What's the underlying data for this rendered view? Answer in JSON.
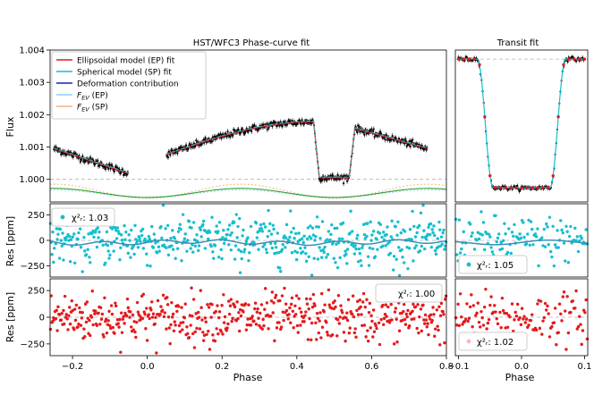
{
  "figure_title_left": "HST/WFC3 Phase-curve fit",
  "figure_title_right": "Transit fit",
  "colors": {
    "ep_model": "#e41a1c",
    "sp_model": "#17becf",
    "deformation": "#1f1fbf",
    "fev_ep": "#87cefa",
    "fev_sp": "#f4b183",
    "green_curve": "#2ca02c",
    "data": "#000000",
    "res_sp": "#17becf",
    "res_ep": "#e41a1c",
    "guide": "#b0b0b0"
  },
  "chart_data": [
    {
      "id": "phase_flux",
      "type": "line",
      "title": "HST/WFC3 Phase-curve fit",
      "ylabel": "Flux",
      "xlim": [
        -0.26,
        0.8
      ],
      "ylim": [
        0.9993,
        1.004
      ],
      "yticks": [
        "1.000",
        "1.001",
        "1.002",
        "1.003",
        "1.004"
      ],
      "ytick_values": [
        1.0,
        1.001,
        1.002,
        1.003,
        1.004
      ],
      "reference_line": 1.0,
      "legend": [
        "Ellipsoidal model (EP) fit",
        "Spherical model (SP) fit",
        "Deformation contribution",
        "F_EV (EP)",
        "F_EV (SP)"
      ],
      "segments": [
        {
          "name": "pre-transit",
          "x": [
            -0.25,
            -0.2,
            -0.15,
            -0.1,
            -0.06
          ],
          "y": [
            1.00095,
            1.00075,
            1.00055,
            1.00035,
            1.00022
          ]
        },
        {
          "name": "post-transit",
          "x": [
            0.06,
            0.1,
            0.2,
            0.3,
            0.4,
            0.44
          ],
          "y": [
            1.0008,
            1.00105,
            1.00135,
            1.0016,
            1.00175,
            1.00178
          ]
        },
        {
          "name": "eclipse",
          "x": [
            0.46,
            0.5,
            0.54
          ],
          "y": [
            1.00005,
            1.0,
            1.00005
          ]
        },
        {
          "name": "post-eclipse",
          "x": [
            0.56,
            0.6,
            0.7,
            0.75
          ],
          "y": [
            1.00158,
            1.00148,
            1.00115,
            1.00095
          ]
        }
      ],
      "transit_window": [
        -0.05,
        0.05
      ],
      "eclipse_window": [
        0.45,
        0.55
      ]
    },
    {
      "id": "transit_flux",
      "type": "line",
      "title": "Transit fit",
      "xlim": [
        -0.105,
        0.105
      ],
      "ylim": [
        0.9993,
        1.004
      ],
      "reference_line": 1.00372,
      "out_of_transit_level": 1.00372,
      "in_transit_depth": 0.99973,
      "ingress": [
        -0.07,
        -0.045
      ],
      "egress": [
        0.045,
        0.07
      ]
    },
    {
      "id": "res_sp_phase",
      "type": "scatter",
      "ylabel": "Res [ppm]",
      "xlim": [
        -0.26,
        0.8
      ],
      "ylim": [
        -360,
        360
      ],
      "yticks": [
        "−250",
        "0",
        "250"
      ],
      "ytick_values": [
        -250,
        0,
        250
      ],
      "annotation": "χ²ᵣ: 1.03",
      "scatter_sd": 120,
      "model_trend": "wiggle"
    },
    {
      "id": "res_sp_transit",
      "type": "scatter",
      "xlim": [
        -0.105,
        0.105
      ],
      "ylim": [
        -360,
        360
      ],
      "annotation": "χ²ᵣ: 1.05",
      "scatter_sd": 120,
      "model_trend": "wiggle"
    },
    {
      "id": "res_ep_phase",
      "type": "scatter",
      "ylabel": "Res [ppm]",
      "xlim": [
        -0.26,
        0.8
      ],
      "ylim": [
        -360,
        360
      ],
      "yticks": [
        "−250",
        "0",
        "250"
      ],
      "ytick_values": [
        -250,
        0,
        250
      ],
      "annotation": "χ²ᵣ: 1.00",
      "scatter_sd": 115
    },
    {
      "id": "res_ep_transit",
      "type": "scatter",
      "xlim": [
        -0.105,
        0.105
      ],
      "ylim": [
        -360,
        360
      ],
      "annotation": "χ²ᵣ: 1.02",
      "scatter_sd": 115
    }
  ],
  "x_axis_left": {
    "label": "Phase",
    "ticks": [
      "−0.2",
      "0.0",
      "0.2",
      "0.4",
      "0.6",
      "0.8"
    ],
    "tick_values": [
      -0.2,
      0.0,
      0.2,
      0.4,
      0.6,
      0.8
    ]
  },
  "x_axis_right": {
    "label": "Phase",
    "ticks": [
      "−0.1",
      "0.0",
      "0.1"
    ],
    "tick_values": [
      -0.1,
      0.0,
      0.1
    ]
  },
  "legend": {
    "ep": "Ellipsoidal model (EP) fit",
    "sp": "Spherical model (SP) fit",
    "def": "Deformation contribution",
    "fev_ep": "F",
    "fev_ep_sub": "EV",
    "fev_ep_suffix": " (EP)",
    "fev_sp": "F",
    "fev_sp_sub": "EV",
    "fev_sp_suffix": " (SP)"
  },
  "labels": {
    "flux_ylabel": "Flux",
    "res_ylabel_sp": "Res [ppm]",
    "res_ylabel_ep": "Res [ppm]",
    "ann_sp_left": "χ²ᵣ: 1.03",
    "ann_sp_right": "χ²ᵣ: 1.05",
    "ann_ep_left": "χ²ᵣ: 1.00",
    "ann_ep_right": "χ²ᵣ: 1.02"
  }
}
